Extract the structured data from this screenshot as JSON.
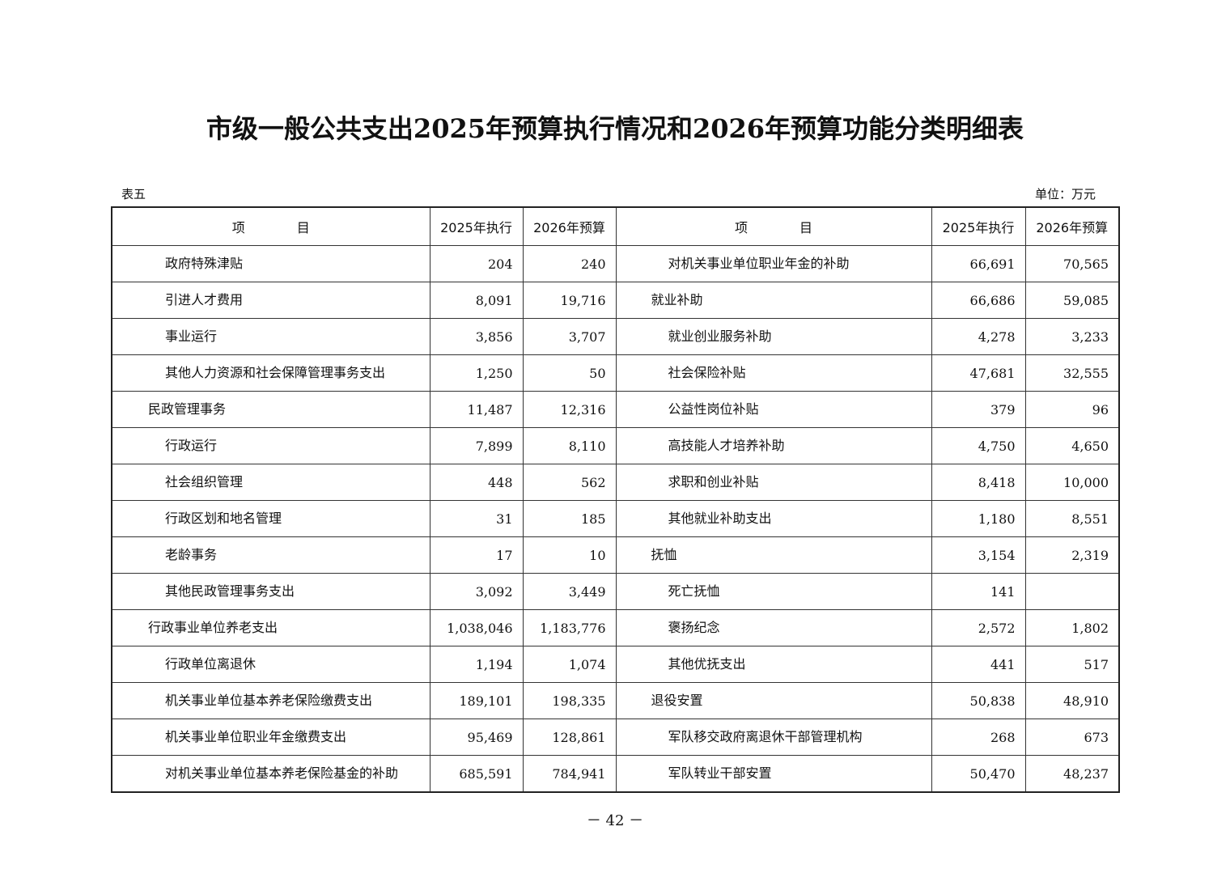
{
  "title": "市级一般公共支出2025年预算执行情况和2026年预算功能分类明细表",
  "table_no": "表五",
  "unit": "单位：万元",
  "headers": [
    "项　　　　目",
    "2025年执行",
    "2026年预算",
    "项　　　　目",
    "2025年执行",
    "2026年预算"
  ],
  "rows": [
    {
      "left": {
        "name": "政府特殊津贴",
        "level": 2,
        "exec2025": "204",
        "budget2026": "240"
      },
      "right": {
        "name": "对机关事业单位职业年金的补助",
        "level": 2,
        "exec2025": "66,691",
        "budget2026": "70,565"
      }
    },
    {
      "left": {
        "name": "引进人才费用",
        "level": 2,
        "exec2025": "8,091",
        "budget2026": "19,716"
      },
      "right": {
        "name": "就业补助",
        "level": 1,
        "exec2025": "66,686",
        "budget2026": "59,085"
      }
    },
    {
      "left": {
        "name": "事业运行",
        "level": 2,
        "exec2025": "3,856",
        "budget2026": "3,707"
      },
      "right": {
        "name": "就业创业服务补助",
        "level": 2,
        "exec2025": "4,278",
        "budget2026": "3,233"
      }
    },
    {
      "left": {
        "name": "其他人力资源和社会保障管理事务支出",
        "level": 2,
        "exec2025": "1,250",
        "budget2026": "50"
      },
      "right": {
        "name": "社会保险补贴",
        "level": 2,
        "exec2025": "47,681",
        "budget2026": "32,555"
      }
    },
    {
      "left": {
        "name": "民政管理事务",
        "level": 1,
        "exec2025": "11,487",
        "budget2026": "12,316"
      },
      "right": {
        "name": "公益性岗位补贴",
        "level": 2,
        "exec2025": "379",
        "budget2026": "96"
      }
    },
    {
      "left": {
        "name": "行政运行",
        "level": 2,
        "exec2025": "7,899",
        "budget2026": "8,110"
      },
      "right": {
        "name": "高技能人才培养补助",
        "level": 2,
        "exec2025": "4,750",
        "budget2026": "4,650"
      }
    },
    {
      "left": {
        "name": "社会组织管理",
        "level": 2,
        "exec2025": "448",
        "budget2026": "562"
      },
      "right": {
        "name": "求职和创业补贴",
        "level": 2,
        "exec2025": "8,418",
        "budget2026": "10,000"
      }
    },
    {
      "left": {
        "name": "行政区划和地名管理",
        "level": 2,
        "exec2025": "31",
        "budget2026": "185"
      },
      "right": {
        "name": "其他就业补助支出",
        "level": 2,
        "exec2025": "1,180",
        "budget2026": "8,551"
      }
    },
    {
      "left": {
        "name": "老龄事务",
        "level": 2,
        "exec2025": "17",
        "budget2026": "10"
      },
      "right": {
        "name": "抚恤",
        "level": 1,
        "exec2025": "3,154",
        "budget2026": "2,319"
      }
    },
    {
      "left": {
        "name": "其他民政管理事务支出",
        "level": 2,
        "exec2025": "3,092",
        "budget2026": "3,449"
      },
      "right": {
        "name": "死亡抚恤",
        "level": 2,
        "exec2025": "141",
        "budget2026": ""
      }
    },
    {
      "left": {
        "name": "行政事业单位养老支出",
        "level": 1,
        "exec2025": "1,038,046",
        "budget2026": "1,183,776"
      },
      "right": {
        "name": "褒扬纪念",
        "level": 2,
        "exec2025": "2,572",
        "budget2026": "1,802"
      }
    },
    {
      "left": {
        "name": "行政单位离退休",
        "level": 2,
        "exec2025": "1,194",
        "budget2026": "1,074"
      },
      "right": {
        "name": "其他优抚支出",
        "level": 2,
        "exec2025": "441",
        "budget2026": "517"
      }
    },
    {
      "left": {
        "name": "机关事业单位基本养老保险缴费支出",
        "level": 2,
        "exec2025": "189,101",
        "budget2026": "198,335"
      },
      "right": {
        "name": "退役安置",
        "level": 1,
        "exec2025": "50,838",
        "budget2026": "48,910"
      }
    },
    {
      "left": {
        "name": "机关事业单位职业年金缴费支出",
        "level": 2,
        "exec2025": "95,469",
        "budget2026": "128,861"
      },
      "right": {
        "name": "军队移交政府离退休干部管理机构",
        "level": 2,
        "exec2025": "268",
        "budget2026": "673"
      }
    },
    {
      "left": {
        "name": "对机关事业单位基本养老保险基金的补助",
        "level": 2,
        "exec2025": "685,591",
        "budget2026": "784,941"
      },
      "right": {
        "name": "军队转业干部安置",
        "level": 2,
        "exec2025": "50,470",
        "budget2026": "48,237"
      }
    }
  ],
  "page_number": "－ 42 －"
}
